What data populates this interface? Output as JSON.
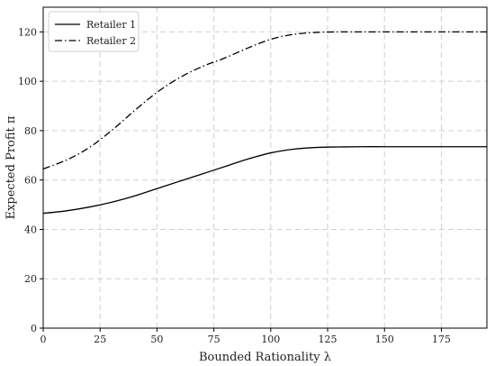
{
  "chart_data": {
    "type": "line",
    "xlabel": "Bounded Rationality λ",
    "ylabel": "Expected Profit π",
    "xlim": [
      0,
      195
    ],
    "ylim": [
      0,
      130
    ],
    "xticks": [
      0,
      25,
      50,
      75,
      100,
      125,
      150,
      175
    ],
    "yticks": [
      0,
      20,
      40,
      60,
      80,
      100,
      120
    ],
    "grid": true,
    "legend_position": "top-left",
    "series": [
      {
        "name": "Retailer 1",
        "style": "solid",
        "color": "#000000",
        "x": [
          0,
          10,
          20,
          30,
          40,
          50,
          60,
          70,
          80,
          90,
          100,
          110,
          120,
          130,
          140,
          150,
          160,
          170,
          180,
          195
        ],
        "y": [
          46.5,
          47.5,
          49.0,
          51.0,
          53.5,
          56.5,
          59.5,
          62.5,
          65.5,
          68.5,
          71.0,
          72.5,
          73.2,
          73.4,
          73.5,
          73.5,
          73.5,
          73.5,
          73.5,
          73.5
        ]
      },
      {
        "name": "Retailer 2",
        "style": "dashdot",
        "color": "#000000",
        "x": [
          0,
          10,
          20,
          30,
          40,
          50,
          60,
          70,
          80,
          90,
          100,
          110,
          120,
          130,
          140,
          150,
          160,
          170,
          180,
          195
        ],
        "y": [
          64.5,
          68.0,
          73.0,
          80.0,
          88.0,
          95.5,
          101.5,
          106.0,
          109.5,
          113.5,
          117.0,
          119.0,
          119.8,
          120.0,
          120.0,
          120.0,
          120.0,
          120.0,
          120.0,
          120.0
        ]
      }
    ]
  }
}
